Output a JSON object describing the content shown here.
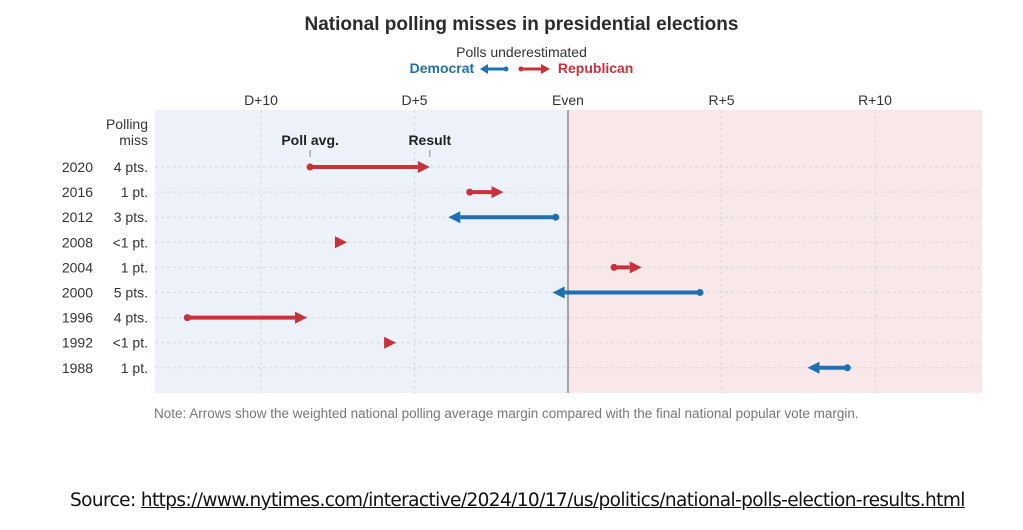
{
  "chart_data": {
    "type": "arrow-dumbbell",
    "title": "National polling misses in presidential elections",
    "legend": {
      "heading": "Polls underestimated",
      "democrat_label": "Democrat",
      "republican_label": "Republican",
      "democrat_color": "#1f6fb3",
      "republican_color": "#c8323a",
      "placement": "top-center"
    },
    "x_axis": {
      "ticks": [
        {
          "value": -10,
          "label": "D+10"
        },
        {
          "value": -5,
          "label": "D+5"
        },
        {
          "value": 0,
          "label": "Even"
        },
        {
          "value": 5,
          "label": "R+5"
        },
        {
          "value": 10,
          "label": "R+10"
        }
      ],
      "range": [
        -13.5,
        13.5
      ],
      "units": "margin in points (negative = Democrat, positive = Republican)"
    },
    "column_header": "Polling\nmiss",
    "column_header_line1": "Polling",
    "column_header_line2": "miss",
    "annotations": {
      "poll_avg": "Poll avg.",
      "result": "Result"
    },
    "background": {
      "democrat_side": "#edf1f9",
      "republican_side": "#f9e8e9"
    },
    "rows": [
      {
        "year": "2020",
        "miss": "4 pts.",
        "poll": -8.4,
        "result": -4.5,
        "underestimated": "Republican"
      },
      {
        "year": "2016",
        "miss": "1 pt.",
        "poll": -3.2,
        "result": -2.1,
        "underestimated": "Republican"
      },
      {
        "year": "2012",
        "miss": "3 pts.",
        "poll": -0.4,
        "result": -3.9,
        "underestimated": "Democrat"
      },
      {
        "year": "2008",
        "miss": "<1 pt.",
        "poll": -7.5,
        "result": -7.2,
        "underestimated": "Republican"
      },
      {
        "year": "2004",
        "miss": "1 pt.",
        "poll": 1.5,
        "result": 2.4,
        "underestimated": "Republican"
      },
      {
        "year": "2000",
        "miss": "5 pts.",
        "poll": 4.3,
        "result": -0.5,
        "underestimated": "Democrat"
      },
      {
        "year": "1996",
        "miss": "4 pts.",
        "poll": -12.4,
        "result": -8.5,
        "underestimated": "Republican"
      },
      {
        "year": "1992",
        "miss": "<1 pt.",
        "poll": -5.8,
        "result": -5.6,
        "underestimated": "Republican"
      },
      {
        "year": "1988",
        "miss": "1 pt.",
        "poll": 9.1,
        "result": 7.8,
        "underestimated": "Democrat"
      }
    ]
  },
  "note": "Note: Arrows show the weighted national polling average margin compared with the final national popular vote margin.",
  "source": {
    "label": "Source: ",
    "url_text": "https://www.nytimes.com/interactive/2024/10/17/us/politics/national-polls-election-results.html"
  }
}
